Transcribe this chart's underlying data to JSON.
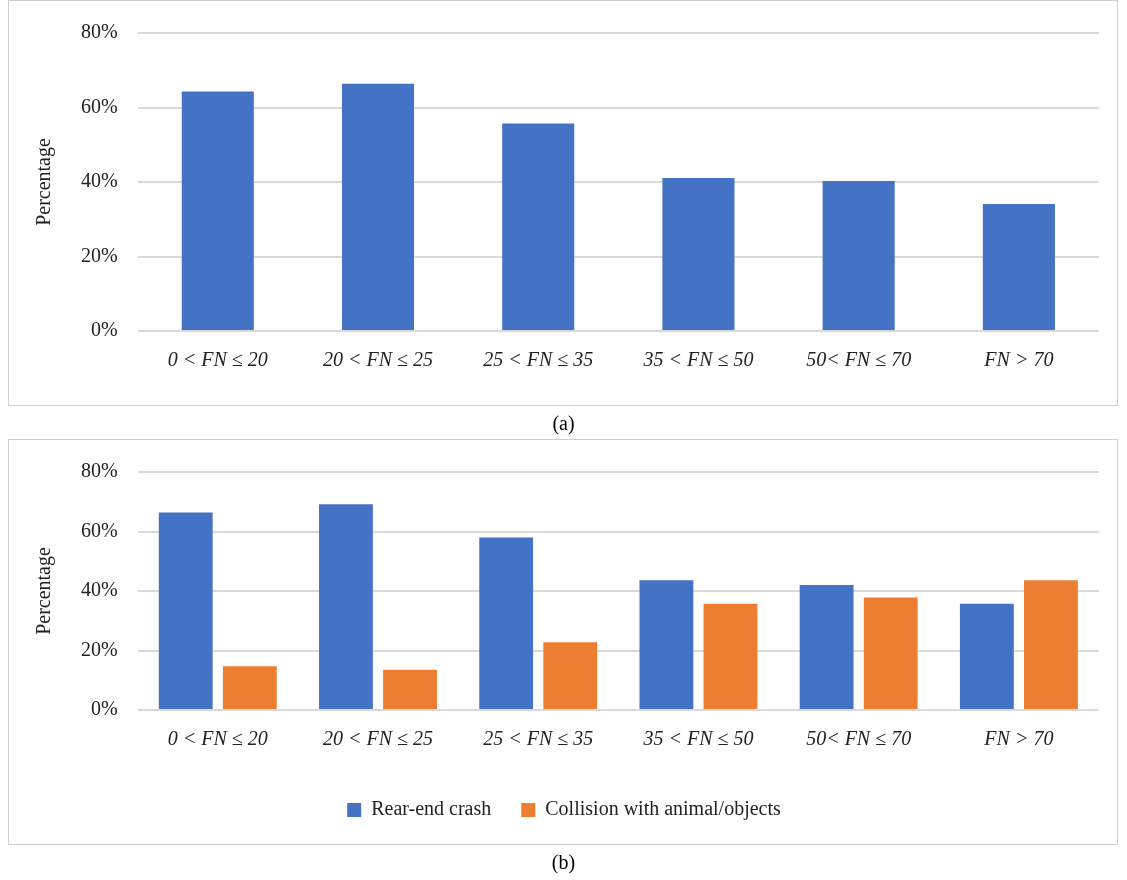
{
  "chart_data": [
    {
      "type": "bar",
      "ylabel": "Percentage",
      "categories": [
        "0 < FN ≤ 20",
        "20 < FN ≤ 25",
        "25 < FN ≤ 35",
        "35 < FN ≤ 50",
        "50< FN ≤ 70",
        "FN > 70"
      ],
      "series": [
        {
          "color": "#4472c4",
          "values": [
            64.3,
            66.4,
            55.7,
            41.1,
            40.3,
            34.1
          ]
        }
      ],
      "ylim": [
        0,
        80
      ],
      "yticks": [
        {
          "value": 0,
          "label": "0%"
        },
        {
          "value": 20,
          "label": "20%"
        },
        {
          "value": 40,
          "label": "40%"
        },
        {
          "value": 60,
          "label": "60%"
        },
        {
          "value": 80,
          "label": "80%"
        }
      ],
      "grid": "y",
      "legend": false,
      "annotations": [
        "(a)"
      ]
    },
    {
      "type": "bar",
      "ylabel": "Percentage",
      "categories": [
        "0 < FN ≤ 20",
        "20 < FN ≤ 25",
        "25 < FN ≤ 35",
        "35 < FN ≤ 50",
        "50< FN ≤ 70",
        "FN > 70"
      ],
      "series": [
        {
          "name": "Rear-end crash",
          "color": "#4472c4",
          "values": [
            66.4,
            69.2,
            58.0,
            43.6,
            42.0,
            35.7
          ]
        },
        {
          "name": "Collision with animal/objects",
          "color": "#ed7d31",
          "values": [
            14.7,
            13.5,
            22.8,
            35.7,
            37.8,
            43.6
          ]
        }
      ],
      "ylim": [
        0,
        80
      ],
      "yticks": [
        {
          "value": 0,
          "label": "0%"
        },
        {
          "value": 20,
          "label": "20%"
        },
        {
          "value": 40,
          "label": "40%"
        },
        {
          "value": 60,
          "label": "60%"
        },
        {
          "value": 80,
          "label": "80%"
        }
      ],
      "grid": "y",
      "legend": "bottom",
      "annotations": [
        "(b)"
      ]
    }
  ]
}
